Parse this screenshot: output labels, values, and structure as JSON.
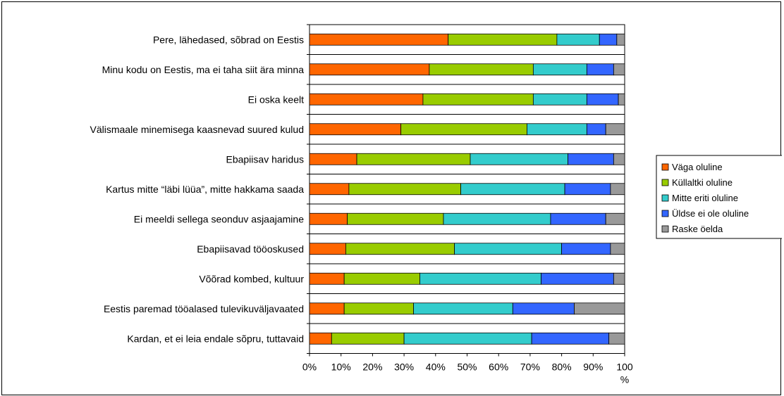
{
  "chart_data": {
    "type": "bar",
    "orientation": "horizontal",
    "stacked": true,
    "percent_stacked": true,
    "categories": [
      "Pere, lähedased, sõbrad on Eestis",
      "Minu kodu on Eestis, ma ei taha siit ära minna",
      "Ei oska keelt",
      "Välismaale minemisega kaasnevad suured kulud",
      "Ebapiisav haridus",
      "Kartus mitte “läbi lüüa”, mitte hakkama saada",
      "Ei meeldi sellega seonduv asjaajamine",
      "Ebapiisavad tööoskused",
      "Võõrad kombed, kultuur",
      "Eestis paremad tööalased tulevikuväljavaated",
      "Kardan, et ei leia endale sõpru, tuttavaid"
    ],
    "series": [
      {
        "name": "Väga oluline",
        "color": "#FF6600",
        "values": [
          44,
          38,
          36,
          29,
          15,
          12.5,
          12,
          11.5,
          11,
          11,
          7
        ]
      },
      {
        "name": "Küllaltki oluline",
        "color": "#99CC00",
        "values": [
          34.5,
          33,
          35,
          40,
          36,
          35.5,
          30.5,
          34.5,
          24,
          22,
          23
        ]
      },
      {
        "name": "Mitte eriti oluline",
        "color": "#33CCCC",
        "values": [
          13.5,
          17,
          17,
          19,
          31,
          33,
          34,
          34,
          38.5,
          31.5,
          40.5
        ]
      },
      {
        "name": "Üldse ei ole oluline",
        "color": "#3366FF",
        "values": [
          5.5,
          8.5,
          10,
          6,
          14.5,
          14.5,
          17.5,
          15.5,
          23,
          19.5,
          24.5
        ]
      },
      {
        "name": "Raske öelda",
        "color": "#999999",
        "values": [
          2.5,
          3.5,
          2,
          6,
          3.5,
          4.5,
          6,
          4.5,
          3.5,
          16,
          5
        ]
      }
    ],
    "x_ticks": [
      "0%",
      "10%",
      "20%",
      "30%",
      "40%",
      "50%",
      "60%",
      "70%",
      "80%",
      "90%",
      "100\n%"
    ],
    "xlim": [
      0,
      100
    ],
    "grid": true,
    "legend_position": "right"
  }
}
